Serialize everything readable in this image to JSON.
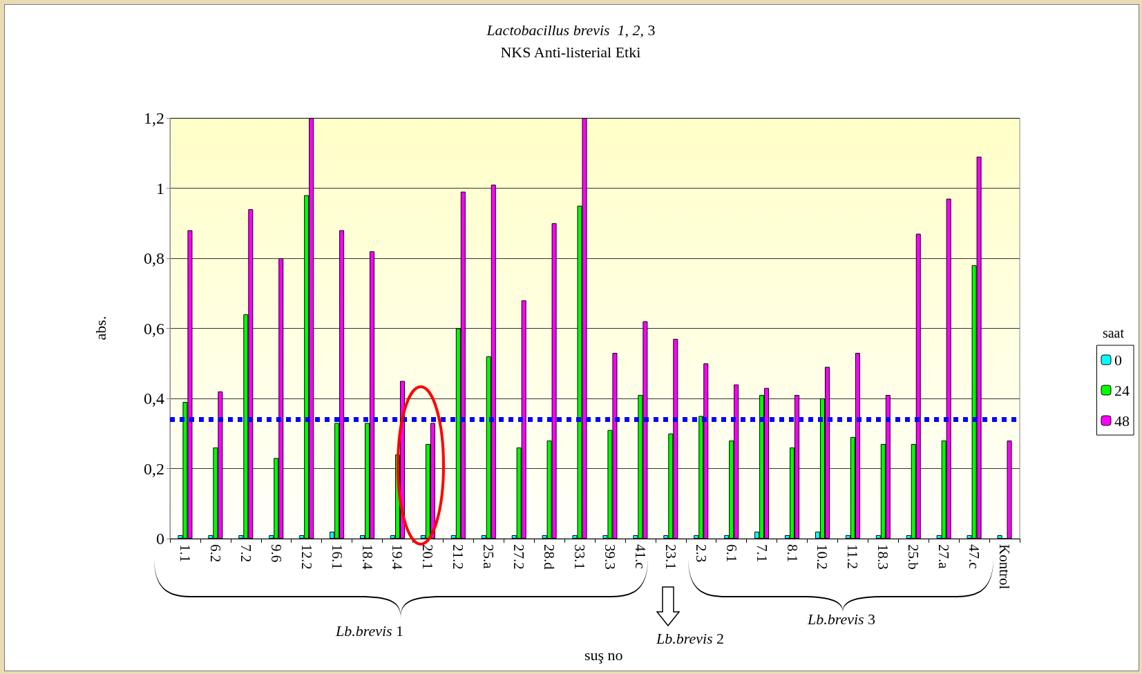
{
  "chart_data": {
    "type": "bar",
    "title": "Lactobacillus brevis  1, 2, 3",
    "subtitle": "NKS Anti-listerial Etki",
    "xlabel": "suş no",
    "ylabel": "abs.",
    "legend_title": "saat",
    "categories": [
      "1.1",
      "6.2",
      "7.2",
      "9.6",
      "12.2",
      "16.1",
      "18.4",
      "19.4",
      "20.1",
      "21.2",
      "25.a",
      "27.2",
      "28.d",
      "33.1",
      "39.3",
      "41.c",
      "23.1",
      "2.3",
      "6.1",
      "7.1",
      "8.1",
      "10.2",
      "11.2",
      "18.3",
      "25.b",
      "27.a",
      "47.c",
      "Kontrol"
    ],
    "series": [
      {
        "name": "0",
        "color": "#00ffff",
        "values": [
          0.01,
          0.01,
          0.01,
          0.01,
          0.01,
          0.02,
          0.01,
          0.01,
          0.01,
          0.01,
          0.01,
          0.01,
          0.01,
          0.01,
          0.01,
          0.01,
          0.01,
          0.01,
          0.01,
          0.02,
          0.01,
          0.02,
          0.01,
          0.01,
          0.01,
          0.01,
          0.01,
          0.01
        ]
      },
      {
        "name": "24",
        "color": "#00ff00",
        "values": [
          0.39,
          0.26,
          0.64,
          0.23,
          0.98,
          0.33,
          0.33,
          0.24,
          0.27,
          0.6,
          0.52,
          0.26,
          0.28,
          0.95,
          0.31,
          0.41,
          0.3,
          0.35,
          0.28,
          0.41,
          0.26,
          0.4,
          0.29,
          0.27,
          0.27,
          0.28,
          0.78,
          0
        ]
      },
      {
        "name": "48",
        "color": "#ff00ff",
        "values": [
          0.88,
          0.42,
          0.94,
          0.8,
          1.2,
          0.88,
          0.82,
          0.45,
          0.33,
          0.99,
          1.01,
          0.68,
          0.9,
          1.2,
          0.53,
          0.62,
          0.57,
          0.5,
          0.44,
          0.43,
          0.41,
          0.49,
          0.53,
          0.41,
          0.87,
          0.97,
          1.09,
          0.28
        ]
      }
    ],
    "ylim": [
      0,
      1.2
    ],
    "yticks": [
      0,
      {
        "value": 0.2,
        "label": "0,2"
      },
      {
        "value": 0.4,
        "label": "0,4"
      },
      {
        "value": 0.6,
        "label": "0,6"
      },
      {
        "value": 0.8,
        "label": "0,8"
      },
      1,
      {
        "value": 1.2,
        "label": "1,2"
      }
    ],
    "grid": "y",
    "legend": "right",
    "ref_lines": [
      {
        "axis": "y",
        "value": 0.34,
        "color": "#0000ff",
        "line_style": "dotted"
      }
    ],
    "annotations": [
      "Lb.brevis 1",
      "Lb.brevis 2",
      "Lb.brevis 3"
    ]
  }
}
